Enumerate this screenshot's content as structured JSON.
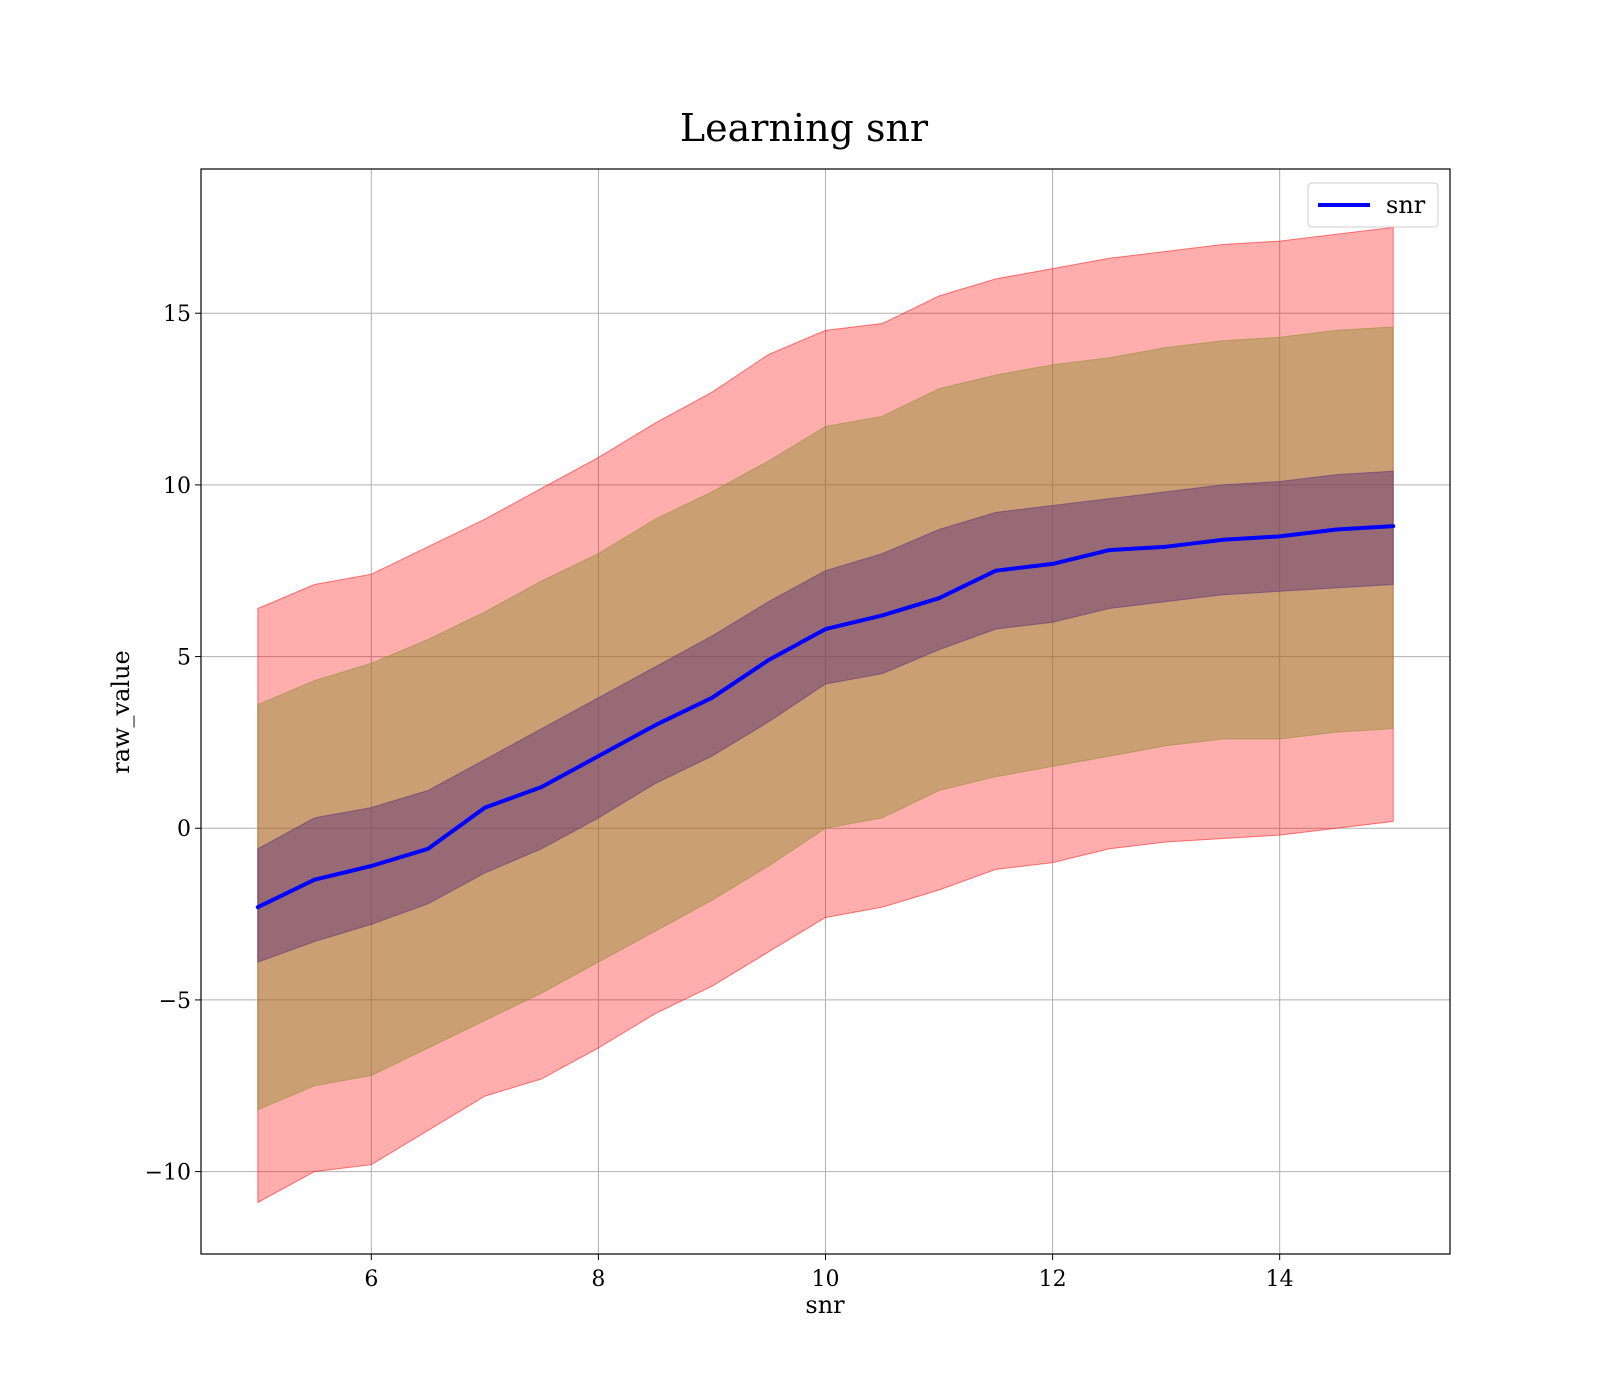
{
  "chart_data": {
    "type": "area",
    "title": "Learning snr",
    "xlabel": "snr",
    "ylabel": "raw_value",
    "xlim": [
      4.5,
      15.5
    ],
    "ylim": [
      -12.4,
      19.2
    ],
    "x_ticks": [
      6,
      8,
      10,
      12,
      14
    ],
    "x_tick_labels": [
      "6",
      "8",
      "10",
      "12",
      "14"
    ],
    "y_ticks": [
      -10,
      -5,
      0,
      5,
      10,
      15
    ],
    "y_tick_labels": [
      "−10",
      "−5",
      "0",
      "5",
      "10",
      "15"
    ],
    "grid": true,
    "legend": {
      "position": "top-right",
      "entries": [
        "snr"
      ]
    },
    "colors": {
      "line": "#0000ff",
      "outer_band": "#ff0000",
      "middle_band": "#8b8f2e",
      "inner_band": "#5c2a7a",
      "grid": "#b0b0b0"
    },
    "x": [
      5.0,
      5.5,
      6.0,
      6.5,
      7.0,
      7.5,
      8.0,
      8.5,
      9.0,
      9.5,
      10.0,
      10.5,
      11.0,
      11.5,
      12.0,
      12.5,
      13.0,
      13.5,
      14.0,
      14.5,
      15.0
    ],
    "series": [
      {
        "name": "snr",
        "role": "mean",
        "values": [
          -2.3,
          -1.5,
          -1.1,
          -0.6,
          0.6,
          1.2,
          2.1,
          3.0,
          3.8,
          4.9,
          5.8,
          6.2,
          6.7,
          7.5,
          7.7,
          8.1,
          8.2,
          8.4,
          8.5,
          8.7,
          8.8
        ]
      },
      {
        "role": "band_outer",
        "lower": [
          -10.9,
          -10.0,
          -9.8,
          -8.8,
          -7.8,
          -7.3,
          -6.4,
          -5.4,
          -4.6,
          -3.6,
          -2.6,
          -2.3,
          -1.8,
          -1.2,
          -1.0,
          -0.6,
          -0.4,
          -0.3,
          -0.2,
          0.0,
          0.2
        ],
        "upper": [
          6.4,
          7.1,
          7.4,
          8.2,
          9.0,
          9.9,
          10.8,
          11.8,
          12.7,
          13.8,
          14.5,
          14.7,
          15.5,
          16.0,
          16.3,
          16.6,
          16.8,
          17.0,
          17.1,
          17.3,
          17.5
        ]
      },
      {
        "role": "band_middle",
        "lower": [
          -8.2,
          -7.5,
          -7.2,
          -6.4,
          -5.6,
          -4.8,
          -3.9,
          -3.0,
          -2.1,
          -1.1,
          0.0,
          0.3,
          1.1,
          1.5,
          1.8,
          2.1,
          2.4,
          2.6,
          2.6,
          2.8,
          2.9
        ],
        "upper": [
          3.6,
          4.3,
          4.8,
          5.5,
          6.3,
          7.2,
          8.0,
          9.0,
          9.8,
          10.7,
          11.7,
          12.0,
          12.8,
          13.2,
          13.5,
          13.7,
          14.0,
          14.2,
          14.3,
          14.5,
          14.6
        ]
      },
      {
        "role": "band_inner",
        "lower": [
          -3.9,
          -3.3,
          -2.8,
          -2.2,
          -1.3,
          -0.6,
          0.3,
          1.3,
          2.1,
          3.1,
          4.2,
          4.5,
          5.2,
          5.8,
          6.0,
          6.4,
          6.6,
          6.8,
          6.9,
          7.0,
          7.1
        ],
        "upper": [
          -0.6,
          0.3,
          0.6,
          1.1,
          2.0,
          2.9,
          3.8,
          4.7,
          5.6,
          6.6,
          7.5,
          8.0,
          8.7,
          9.2,
          9.4,
          9.6,
          9.8,
          10.0,
          10.1,
          10.3,
          10.4
        ]
      }
    ]
  }
}
